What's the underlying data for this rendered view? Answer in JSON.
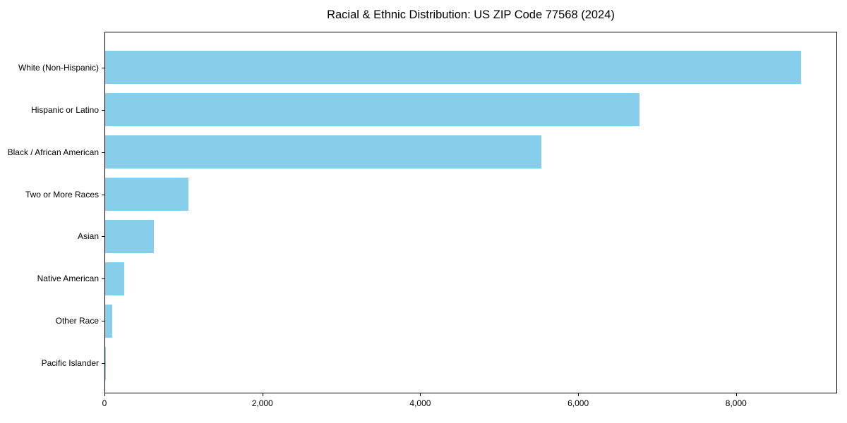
{
  "figure": {
    "background": "#ffffff"
  },
  "chart_data": {
    "type": "bar",
    "orientation": "horizontal",
    "title": "Racial & Ethnic Distribution: US ZIP Code 77568 (2024)",
    "categories": [
      "White (Non-Hispanic)",
      "Hispanic or Latino",
      "Black / African American",
      "Two or More Races",
      "Asian",
      "Native American",
      "Other Race",
      "Pacific Islander"
    ],
    "values": [
      8830,
      6780,
      5540,
      1060,
      620,
      240,
      90,
      10
    ],
    "xlabel": "",
    "ylabel": "",
    "xlim": [
      0,
      9280
    ],
    "xticks": [
      0,
      2000,
      4000,
      6000,
      8000
    ],
    "xtick_labels": [
      "0",
      "2,000",
      "4,000",
      "6,000",
      "8,000"
    ],
    "bar_color": "#87CEEB",
    "axis_color": "#000000",
    "text_color": "#000000",
    "grid": false,
    "legend": "none"
  }
}
